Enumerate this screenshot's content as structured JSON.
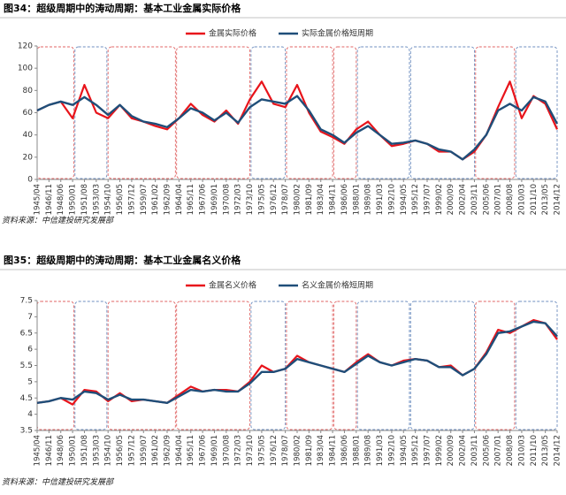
{
  "chart_data": [
    {
      "type": "line",
      "title": "图34：超级周期中的涛动周期：基本工业金属实际价格",
      "source": "资料来源：中信建投研究发展部",
      "categories": [
        "1945/04",
        "1946/11",
        "1948/06",
        "1950/01",
        "1951/08",
        "1953/03",
        "1954/10",
        "1956/05",
        "1957/12",
        "1959/07",
        "1961/02",
        "1962/09",
        "1964/04",
        "1965/11",
        "1967/06",
        "1969/01",
        "1970/08",
        "1972/03",
        "1973/10",
        "1975/05",
        "1976/12",
        "1978/07",
        "1980/02",
        "1981/09",
        "1983/04",
        "1984/11",
        "1986/06",
        "1988/01",
        "1989/08",
        "1991/03",
        "1992/10",
        "1994/05",
        "1995/12",
        "1997/07",
        "1999/02",
        "2000/09",
        "2002/04",
        "2003/11",
        "2005/06",
        "2007/01",
        "2008/08",
        "2010/03",
        "2011/10",
        "2013/05",
        "2014/12"
      ],
      "series": [
        {
          "name": "金属实际价格",
          "color": "#e8141b",
          "values": [
            62,
            67,
            70,
            55,
            85,
            60,
            55,
            67,
            55,
            52,
            48,
            45,
            55,
            68,
            58,
            52,
            62,
            50,
            72,
            88,
            68,
            65,
            85,
            60,
            43,
            38,
            32,
            45,
            52,
            40,
            30,
            32,
            35,
            32,
            25,
            25,
            18,
            25,
            40,
            65,
            88,
            55,
            75,
            68,
            45
          ]
        },
        {
          "name": "实际金属价格短周期",
          "color": "#1f4e79",
          "values": [
            62,
            67,
            70,
            67,
            74,
            67,
            58,
            67,
            57,
            52,
            50,
            47,
            55,
            64,
            60,
            53,
            60,
            51,
            65,
            72,
            70,
            68,
            75,
            62,
            45,
            40,
            33,
            42,
            48,
            40,
            32,
            33,
            35,
            32,
            27,
            25,
            18,
            27,
            40,
            62,
            68,
            62,
            74,
            70,
            50
          ]
        }
      ],
      "ylim": [
        0,
        120
      ],
      "yticks": [
        0,
        20,
        40,
        60,
        80,
        100,
        120
      ]
    },
    {
      "type": "line",
      "title": "图35：超级周期中的涛动周期：基本工业金属名义价格",
      "source": "资料来源：中信建投研究发展部",
      "categories": [
        "1945/04",
        "1946/11",
        "1948/06",
        "1950/01",
        "1951/08",
        "1953/03",
        "1954/10",
        "1956/05",
        "1957/12",
        "1959/07",
        "1961/02",
        "1962/09",
        "1964/04",
        "1965/11",
        "1967/06",
        "1969/01",
        "1970/08",
        "1972/03",
        "1973/10",
        "1975/05",
        "1976/12",
        "1978/07",
        "1980/02",
        "1981/09",
        "1983/04",
        "1984/11",
        "1986/06",
        "1988/01",
        "1989/08",
        "1991/03",
        "1992/10",
        "1994/05",
        "1995/12",
        "1997/07",
        "1999/02",
        "2000/09",
        "2002/04",
        "2003/11",
        "2005/06",
        "2007/01",
        "2008/08",
        "2010/03",
        "2011/10",
        "2013/05",
        "2014/12"
      ],
      "series": [
        {
          "name": "金属名义价格",
          "color": "#e8141b",
          "values": [
            4.35,
            4.4,
            4.5,
            4.3,
            4.75,
            4.7,
            4.4,
            4.65,
            4.4,
            4.45,
            4.4,
            4.35,
            4.6,
            4.85,
            4.7,
            4.75,
            4.75,
            4.7,
            5.0,
            5.5,
            5.3,
            5.4,
            5.8,
            5.6,
            5.5,
            5.4,
            5.3,
            5.6,
            5.85,
            5.6,
            5.5,
            5.65,
            5.7,
            5.65,
            5.45,
            5.5,
            5.2,
            5.4,
            5.9,
            6.6,
            6.5,
            6.7,
            6.9,
            6.8,
            6.3
          ]
        },
        {
          "name": "名义金属价格短周期",
          "color": "#1f4e79",
          "values": [
            4.35,
            4.4,
            4.5,
            4.45,
            4.7,
            4.65,
            4.45,
            4.6,
            4.45,
            4.45,
            4.4,
            4.35,
            4.55,
            4.75,
            4.7,
            4.75,
            4.7,
            4.7,
            4.95,
            5.3,
            5.3,
            5.4,
            5.7,
            5.6,
            5.5,
            5.4,
            5.3,
            5.55,
            5.8,
            5.6,
            5.5,
            5.6,
            5.7,
            5.65,
            5.45,
            5.45,
            5.2,
            5.4,
            5.85,
            6.5,
            6.55,
            6.7,
            6.85,
            6.8,
            6.4
          ]
        }
      ],
      "ylim": [
        3.5,
        7.5
      ],
      "yticks": [
        3.5,
        4,
        4.5,
        5,
        5.5,
        6,
        6.5,
        7,
        7.5
      ]
    }
  ]
}
